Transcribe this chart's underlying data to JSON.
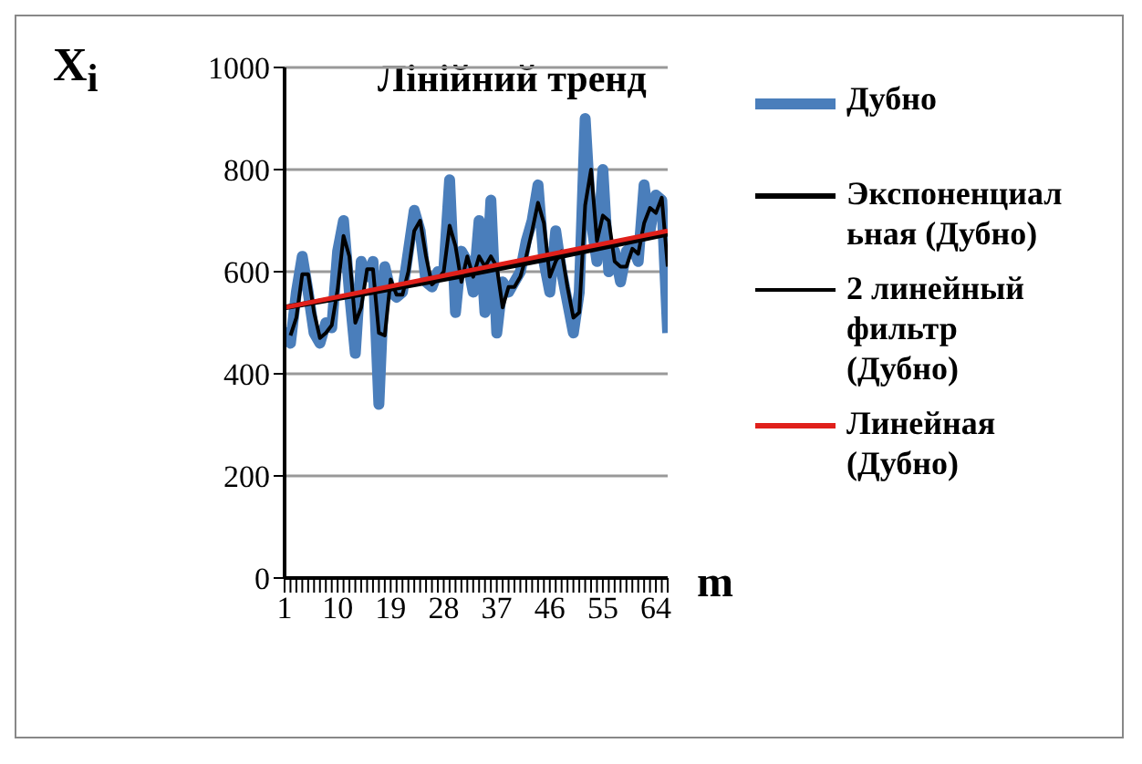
{
  "chart_data": {
    "type": "line",
    "ylabel": "X$_{i}$",
    "xlabel": "m",
    "annotations": [
      "Лінійний тренд"
    ],
    "x": [
      1,
      2,
      3,
      4,
      5,
      6,
      7,
      8,
      9,
      10,
      11,
      12,
      13,
      14,
      15,
      16,
      17,
      18,
      19,
      20,
      21,
      22,
      23,
      24,
      25,
      26,
      27,
      28,
      29,
      30,
      31,
      32,
      33,
      34,
      35,
      36,
      37,
      38,
      39,
      40,
      41,
      42,
      43,
      44,
      45,
      46,
      47,
      48,
      49,
      50,
      51,
      52,
      53,
      54,
      55,
      56,
      57,
      58,
      59,
      60,
      61,
      62,
      63,
      64,
      65,
      66
    ],
    "xlim": [
      1,
      66
    ],
    "xticks": [
      1,
      {
        "value": 2,
        "label": null
      },
      {
        "value": 3,
        "label": null
      },
      {
        "value": 4,
        "label": null
      },
      {
        "value": 5,
        "label": null
      },
      {
        "value": 6,
        "label": null
      },
      {
        "value": 7,
        "label": null
      },
      {
        "value": 8,
        "label": null
      },
      {
        "value": 9,
        "label": null
      },
      10,
      {
        "value": 11,
        "label": null
      },
      {
        "value": 12,
        "label": null
      },
      {
        "value": 13,
        "label": null
      },
      {
        "value": 14,
        "label": null
      },
      {
        "value": 15,
        "label": null
      },
      {
        "value": 16,
        "label": null
      },
      {
        "value": 17,
        "label": null
      },
      {
        "value": 18,
        "label": null
      },
      19,
      {
        "value": 20,
        "label": null
      },
      {
        "value": 21,
        "label": null
      },
      {
        "value": 22,
        "label": null
      },
      {
        "value": 23,
        "label": null
      },
      {
        "value": 24,
        "label": null
      },
      {
        "value": 25,
        "label": null
      },
      {
        "value": 26,
        "label": null
      },
      {
        "value": 27,
        "label": null
      },
      28,
      {
        "value": 29,
        "label": null
      },
      {
        "value": 30,
        "label": null
      },
      {
        "value": 31,
        "label": null
      },
      {
        "value": 32,
        "label": null
      },
      {
        "value": 33,
        "label": null
      },
      {
        "value": 34,
        "label": null
      },
      {
        "value": 35,
        "label": null
      },
      {
        "value": 36,
        "label": null
      },
      37,
      {
        "value": 38,
        "label": null
      },
      {
        "value": 39,
        "label": null
      },
      {
        "value": 40,
        "label": null
      },
      {
        "value": 41,
        "label": null
      },
      {
        "value": 42,
        "label": null
      },
      {
        "value": 43,
        "label": null
      },
      {
        "value": 44,
        "label": null
      },
      {
        "value": 45,
        "label": null
      },
      46,
      {
        "value": 47,
        "label": null
      },
      {
        "value": 48,
        "label": null
      },
      {
        "value": 49,
        "label": null
      },
      {
        "value": 50,
        "label": null
      },
      {
        "value": 51,
        "label": null
      },
      {
        "value": 52,
        "label": null
      },
      {
        "value": 53,
        "label": null
      },
      {
        "value": 54,
        "label": null
      },
      55,
      {
        "value": 56,
        "label": null
      },
      {
        "value": 57,
        "label": null
      },
      {
        "value": 58,
        "label": null
      },
      {
        "value": 59,
        "label": null
      },
      {
        "value": 60,
        "label": null
      },
      {
        "value": 61,
        "label": null
      },
      {
        "value": 62,
        "label": null
      },
      {
        "value": 63,
        "label": null
      },
      64,
      {
        "value": 65,
        "label": null
      },
      {
        "value": 66,
        "label": null
      }
    ],
    "ylim": [
      0,
      1000
    ],
    "yticks": [
      0,
      200,
      400,
      600,
      800,
      1000
    ],
    "grid": "y",
    "legend": "right",
    "series": [
      {
        "name": "Дубно",
        "color": "#4a7ebb",
        "values": [
          490,
          460,
          560,
          630,
          560,
          480,
          460,
          500,
          490,
          640,
          700,
          560,
          440,
          620,
          590,
          620,
          340,
          610,
          560,
          550,
          560,
          640,
          720,
          680,
          580,
          570,
          600,
          600,
          780,
          520,
          640,
          620,
          560,
          700,
          520,
          740,
          480,
          580,
          560,
          580,
          600,
          660,
          700,
          770,
          620,
          560,
          680,
          600,
          540,
          480,
          560,
          900,
          700,
          620,
          800,
          600,
          640,
          580,
          640,
          650,
          620,
          770,
          680,
          750,
          740,
          480
        ]
      },
      {
        "name": "Экспоненциальная (Дубно)",
        "color": "#000000",
        "x": [
          1,
          16,
          31,
          46,
          66
        ],
        "values": [
          530,
          560,
          592,
          626,
          674
        ]
      },
      {
        "name": "2 линейный фильтр (Дубно)",
        "color": "#000000",
        "values": [
          null,
          475,
          510,
          595,
          595,
          520,
          470,
          480,
          495,
          565,
          670,
          630,
          500,
          530,
          605,
          605,
          480,
          475,
          585,
          555,
          555,
          600,
          680,
          700,
          630,
          575,
          585,
          600,
          690,
          650,
          580,
          630,
          590,
          630,
          610,
          630,
          610,
          530,
          570,
          570,
          590,
          630,
          680,
          735,
          695,
          590,
          620,
          640,
          570,
          510,
          520,
          730,
          800,
          660,
          710,
          700,
          620,
          610,
          610,
          645,
          635,
          695,
          725,
          715,
          745,
          610
        ]
      },
      {
        "name": "Линейная (Дубно)",
        "color": "#e0201b",
        "x": [
          1,
          66
        ],
        "values": [
          530,
          680
        ]
      }
    ]
  }
}
